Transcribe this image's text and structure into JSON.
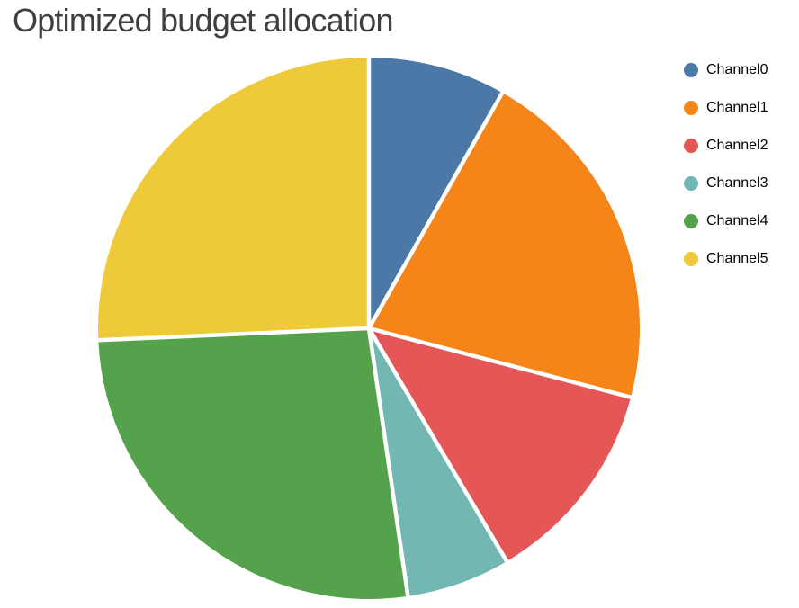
{
  "header": {
    "title": "Optimized budget allocation",
    "title_color": "#3c4043"
  },
  "chart_data": {
    "type": "pie",
    "title": "Optimized budget allocation",
    "categories": [
      "Channel0",
      "Channel1",
      "Channel2",
      "Channel3",
      "Channel4",
      "Channel5"
    ],
    "values_percent": [
      8.2,
      20.9,
      12.4,
      6.2,
      26.6,
      25.7
    ],
    "colors": [
      "#4c78a8",
      "#f58518",
      "#e45756",
      "#72b7b2",
      "#54a24b",
      "#eeca3b"
    ],
    "start_angle_deg": 0,
    "direction": "clockwise",
    "slice_separator_color": "#ffffff",
    "background_color": "#ffffff",
    "legend_position": "right",
    "legend_text_color": "#000000"
  }
}
